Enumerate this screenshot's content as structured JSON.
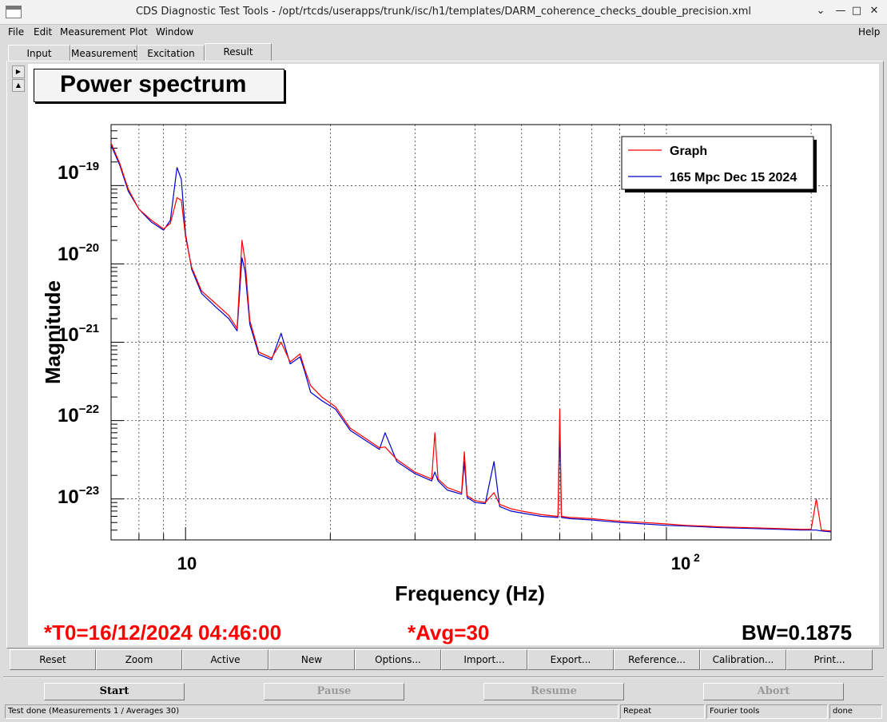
{
  "window": {
    "title": "CDS Diagnostic Test Tools - /opt/rtcds/userapps/trunk/isc/h1/templates/DARM_coherence_checks_double_precision.xml"
  },
  "menu": {
    "file": "File",
    "edit": "Edit",
    "measurement": "Measurement",
    "plot": "Plot",
    "window": "Window",
    "help": "Help"
  },
  "tabs": [
    "Input",
    "Measurement",
    "Excitation",
    "Result"
  ],
  "plot": {
    "title": "Power spectrum",
    "t0": "*T0=16/12/2024 04:46:00",
    "avg": "*Avg=30",
    "bw": "BW=0.1875",
    "legend": [
      "Graph",
      "165 Mpc Dec 15 2024"
    ]
  },
  "chart_data": {
    "type": "line",
    "xlabel": "Frequency (Hz)",
    "ylabel": "Magnitude",
    "xscale": "log",
    "yscale": "log",
    "xlim": [
      7,
      220
    ],
    "ylim": [
      3e-24,
      6e-19
    ],
    "x_ticks": [
      "10",
      "10^2"
    ],
    "y_ticks": [
      "10^-19",
      "10^-20",
      "10^-21",
      "10^-22",
      "10^-23"
    ],
    "grid": true,
    "legend_position": "top-right",
    "colors": {
      "Graph": "#ff0000",
      "165 Mpc Dec 15 2024": "#0000cc"
    },
    "series": [
      {
        "name": "Graph",
        "x": [
          7,
          7.3,
          7.6,
          8,
          8.5,
          9,
          9.3,
          9.6,
          9.8,
          10,
          10.3,
          10.8,
          11.5,
          12.3,
          12.8,
          13.1,
          13.3,
          13.6,
          14.2,
          15.1,
          15.8,
          16.5,
          17.3,
          17.7,
          18.2,
          19.2,
          20.5,
          22,
          24,
          25.3,
          26,
          27.5,
          30,
          32.5,
          33,
          33.5,
          35,
          37.5,
          38,
          38.5,
          40,
          42,
          43.8,
          45,
          47.5,
          50,
          55,
          59.5,
          60,
          60.5,
          63,
          70,
          80,
          90,
          100,
          110,
          120,
          130,
          150,
          170,
          190,
          200,
          205,
          210,
          220
        ],
        "values": [
          3.5e-19,
          1.9e-19,
          9e-20,
          5e-20,
          3.6e-20,
          2.8e-20,
          3.3e-20,
          7e-20,
          6.5e-20,
          2.2e-20,
          9e-21,
          4.5e-21,
          3.2e-21,
          2.2e-21,
          1.5e-21,
          2e-20,
          1.1e-20,
          1.9e-21,
          7.5e-22,
          6.3e-22,
          1e-21,
          5.6e-22,
          7.1e-22,
          4.5e-22,
          2.8e-22,
          2e-22,
          1.5e-22,
          8e-23,
          5.6e-23,
          4.5e-23,
          4.6e-23,
          3.2e-23,
          2.2e-23,
          1.8e-23,
          7e-23,
          1.8e-23,
          1.4e-23,
          1.2e-23,
          4e-23,
          1.1e-23,
          9.5e-24,
          9e-24,
          1.2e-23,
          8.5e-24,
          7.5e-24,
          7e-24,
          6.3e-24,
          6e-24,
          1.4e-22,
          6e-24,
          5.8e-24,
          5.6e-24,
          5.2e-24,
          5e-24,
          4.8e-24,
          4.6e-24,
          4.5e-24,
          4.4e-24,
          4.3e-24,
          4.2e-24,
          4.1e-24,
          4.1e-24,
          1e-23,
          4e-24,
          3.9e-24
        ]
      },
      {
        "name": "165 Mpc Dec 15 2024",
        "x": [
          7,
          7.3,
          7.6,
          8,
          8.5,
          9,
          9.3,
          9.6,
          9.8,
          10,
          10.3,
          10.8,
          11.5,
          12.3,
          12.8,
          13.1,
          13.3,
          13.6,
          14.2,
          15.1,
          15.8,
          16.5,
          17.3,
          17.7,
          18.2,
          19.2,
          20.5,
          22,
          24,
          25.3,
          26,
          27.5,
          30,
          32.5,
          33,
          33.5,
          35,
          37.5,
          38,
          38.5,
          40,
          42,
          43.8,
          45,
          47.5,
          50,
          55,
          59.5,
          60,
          60.5,
          63,
          70,
          80,
          90,
          100,
          110,
          120,
          130,
          150,
          170,
          190,
          200,
          205,
          210,
          220
        ],
        "values": [
          3.3e-19,
          1.8e-19,
          8.5e-20,
          5e-20,
          3.4e-20,
          2.7e-20,
          3.6e-20,
          1.7e-19,
          1.2e-19,
          2.4e-20,
          8.5e-21,
          4.2e-21,
          2.9e-21,
          2e-21,
          1.4e-21,
          1.2e-20,
          8e-21,
          1.7e-21,
          7e-22,
          6e-22,
          1.3e-21,
          5.3e-22,
          6.5e-22,
          4.2e-22,
          2.3e-22,
          1.8e-22,
          1.4e-22,
          7.5e-23,
          5.3e-23,
          4.3e-23,
          7e-23,
          3e-23,
          2.1e-23,
          1.7e-23,
          2.2e-23,
          1.7e-23,
          1.3e-23,
          1.15e-23,
          3e-23,
          1.05e-23,
          9e-24,
          8.7e-24,
          3e-23,
          8e-24,
          7e-24,
          6.6e-24,
          6e-24,
          5.8e-24,
          8e-23,
          5.8e-24,
          5.6e-24,
          5.4e-24,
          5e-24,
          4.8e-24,
          4.6e-24,
          4.5e-24,
          4.4e-24,
          4.3e-24,
          4.2e-24,
          4.1e-24,
          4e-24,
          4e-24,
          4e-24,
          3.9e-24,
          3.8e-24
        ]
      }
    ]
  },
  "buttons": [
    "Reset",
    "Zoom",
    "Active",
    "New",
    "Options...",
    "Import...",
    "Export...",
    "Reference...",
    "Calibration...",
    "Print..."
  ],
  "controls": [
    "Start",
    "Pause",
    "Resume",
    "Abort"
  ],
  "status": {
    "message": "Test done (Measurements 1 / Averages 30)",
    "repeat": "Repeat",
    "tools": "Fourier tools",
    "state": "done"
  }
}
